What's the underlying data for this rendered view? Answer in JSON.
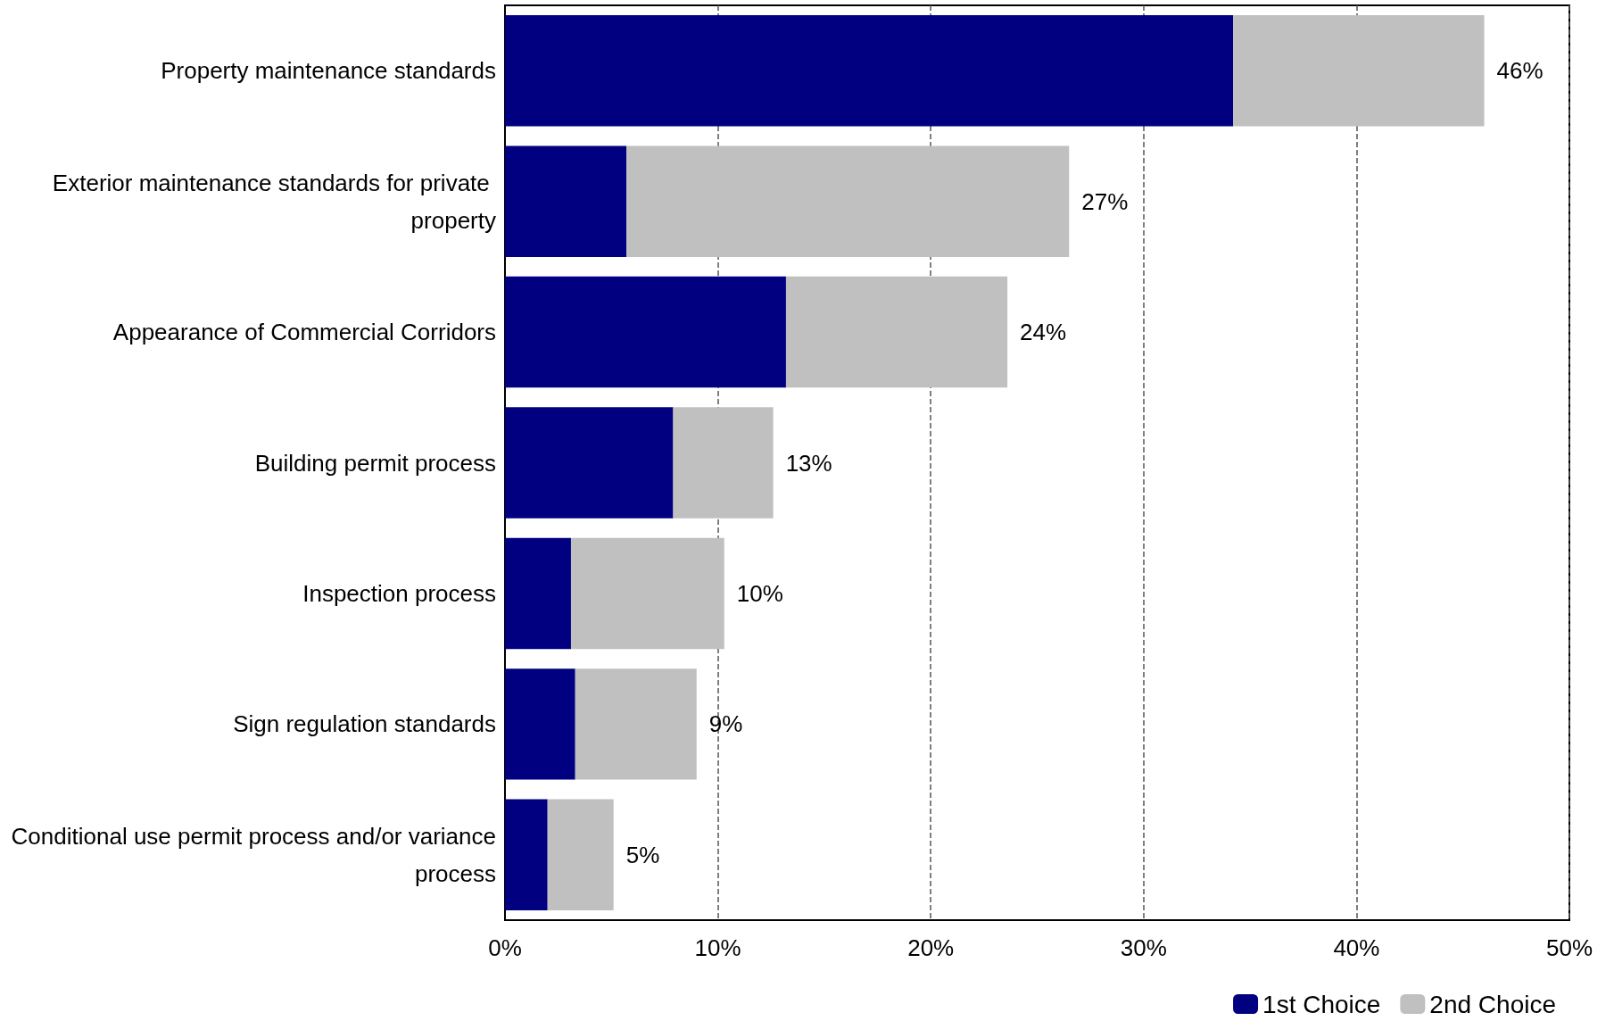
{
  "chart_data": {
    "type": "bar",
    "orientation": "horizontal",
    "stacked": true,
    "categories": [
      "Property maintenance standards",
      "Exterior maintenance standards for private property",
      "Appearance of Commercial Corridors",
      "Building permit process",
      "Inspection process",
      "Sign regulation standards",
      "Conditional use permit process and/or variance process"
    ],
    "series": [
      {
        "name": "1st Choice",
        "color": "#000080",
        "values": [
          34.2,
          5.7,
          13.2,
          7.9,
          3.1,
          3.3,
          2.0
        ]
      },
      {
        "name": "2nd Choice",
        "color": "#c0c0c0",
        "values": [
          11.8,
          20.8,
          10.4,
          4.7,
          7.2,
          5.7,
          3.1
        ]
      }
    ],
    "totals": [
      "46%",
      "27%",
      "24%",
      "13%",
      "10%",
      "9%",
      "5%"
    ],
    "xlim": [
      0,
      50
    ],
    "xticks": [
      {
        "value": 0,
        "label": "0%"
      },
      {
        "value": 10,
        "label": "10%"
      },
      {
        "value": 20,
        "label": "20%"
      },
      {
        "value": 30,
        "label": "30%"
      },
      {
        "value": 40,
        "label": "40%"
      },
      {
        "value": 50,
        "label": "50%"
      }
    ],
    "grid": "x",
    "legend": "bottom right"
  }
}
